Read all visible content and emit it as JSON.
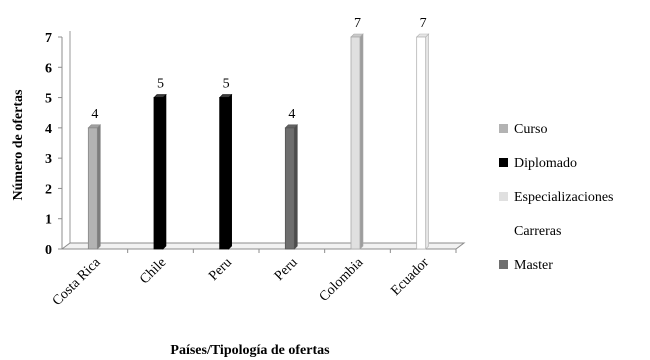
{
  "chart_data": {
    "type": "bar",
    "style": "3d-column",
    "title": "",
    "xlabel": "Países/Tipología de ofertas",
    "ylabel": "Número de ofertas",
    "ylim": [
      0,
      7
    ],
    "yticks": [
      0,
      1,
      2,
      3,
      4,
      5,
      6,
      7
    ],
    "grid": false,
    "legend_position": "right",
    "categories": [
      "Costa Rica",
      "Chile",
      "Peru",
      "Peru",
      "Colombia",
      "Ecuador"
    ],
    "series": [
      {
        "name": "Curso",
        "color": "#b3b3b3",
        "values": [
          4,
          null,
          null,
          null,
          null,
          null
        ]
      },
      {
        "name": "Diplomado",
        "color": "#000000",
        "values": [
          null,
          5,
          5,
          null,
          null,
          null
        ]
      },
      {
        "name": "Especializaciones",
        "color": "#e0e0e0",
        "values": [
          null,
          null,
          null,
          null,
          7,
          null
        ]
      },
      {
        "name": "Carreras",
        "color": "#ffffff",
        "values": [
          null,
          null,
          null,
          null,
          null,
          7
        ]
      },
      {
        "name": "Master",
        "color": "#6e6e6e",
        "values": [
          null,
          null,
          null,
          4,
          null,
          null
        ]
      }
    ],
    "bars": [
      {
        "category_index": 0,
        "series_index": 0,
        "value": 4,
        "label": "4"
      },
      {
        "category_index": 1,
        "series_index": 1,
        "value": 5,
        "label": "5"
      },
      {
        "category_index": 2,
        "series_index": 1,
        "value": 5,
        "label": "5"
      },
      {
        "category_index": 3,
        "series_index": 4,
        "value": 4,
        "label": "4"
      },
      {
        "category_index": 4,
        "series_index": 2,
        "value": 7,
        "label": "7"
      },
      {
        "category_index": 5,
        "series_index": 3,
        "value": 7,
        "label": "7"
      }
    ]
  }
}
